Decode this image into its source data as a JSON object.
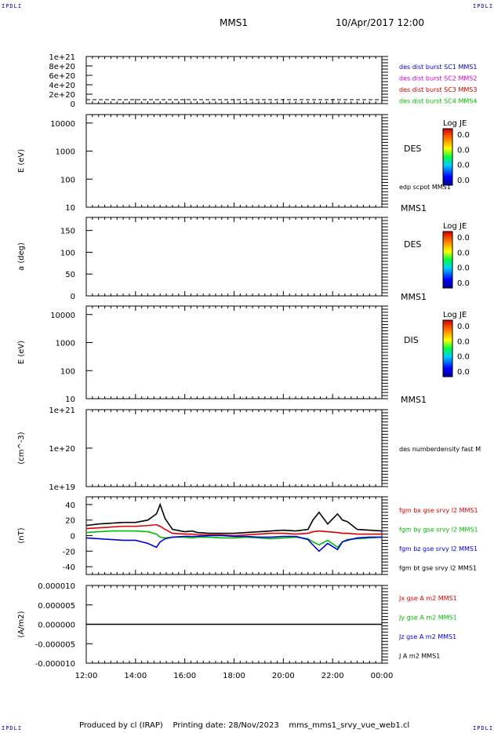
{
  "header": {
    "corner_label": "IPDLI",
    "spacecraft": "MMS1",
    "datetime": "10/Apr/2017 12:00"
  },
  "footer": {
    "producer": "Produced by cl (IRAP)",
    "printing_date": "Printing date: 28/Nov/2023",
    "filename": "mms_mms1_srvy_vue_web1.cl"
  },
  "chart_data": [
    {
      "type": "line",
      "panel": "distribution-burst",
      "yticks": [
        "1e+21",
        "8e+20",
        "6e+20",
        "4e+20",
        "2e+20",
        "0"
      ],
      "ylim": [
        0,
        1e+21
      ],
      "legend": [
        {
          "label": "des dist burst SC1 MMS1",
          "color": "#0000cc"
        },
        {
          "label": "des dist burst SC2 MMS2",
          "color": "#cc00cc"
        },
        {
          "label": "des dist burst SC3 MMS3",
          "color": "#cc0000"
        },
        {
          "label": "des dist burst SC4 MMS4",
          "color": "#00bb00"
        }
      ],
      "series": [
        {
          "values": [
            0,
            0,
            0,
            0,
            0,
            0,
            0,
            0,
            0,
            0,
            0,
            0,
            0
          ]
        }
      ]
    },
    {
      "type": "heatmap",
      "panel": "des-energy",
      "ylabel": "E (eV)",
      "yscale": "log",
      "ylim": [
        10,
        20000
      ],
      "yticks": [
        "10000",
        "1000",
        "100",
        "10"
      ],
      "label": "DES",
      "spacecraft_label": "MMS1",
      "extra_label": "edp scpot MMS1",
      "colorbar": {
        "title": "Log JE",
        "ticks": [
          "0.0",
          "0.0",
          "0.0",
          "0.0"
        ]
      }
    },
    {
      "type": "heatmap",
      "panel": "des-pitch",
      "ylabel": "a (deg)",
      "ylim": [
        0,
        180
      ],
      "yticks": [
        "150",
        "100",
        "50",
        "0"
      ],
      "label": "DES",
      "spacecraft_label": "MMS1",
      "colorbar": {
        "title": "Log JE",
        "ticks": [
          "0.0",
          "0.0",
          "0.0",
          "0.0"
        ]
      }
    },
    {
      "type": "heatmap",
      "panel": "dis-energy",
      "ylabel": "E (eV)",
      "yscale": "log",
      "ylim": [
        10,
        20000
      ],
      "yticks": [
        "10000",
        "1000",
        "100",
        "10"
      ],
      "label": "DIS",
      "spacecraft_label": "MMS1",
      "colorbar": {
        "title": "Log JE",
        "ticks": [
          "0.0",
          "0.0",
          "0.0",
          "0.0"
        ]
      }
    },
    {
      "type": "line",
      "panel": "density",
      "ylabel": "(cm^-3)",
      "yscale": "log",
      "ylim": [
        1e+19,
        1e+21
      ],
      "yticks": [
        "1e+21",
        "1e+20",
        "1e+19"
      ],
      "legend": [
        {
          "label": "des numberdensity fast M",
          "color": "#000000"
        }
      ]
    },
    {
      "type": "line",
      "panel": "magnetic-field",
      "ylabel": "(nT)",
      "ylim": [
        -50,
        50
      ],
      "yticks": [
        "40",
        "20",
        "0",
        "-20",
        "-40"
      ],
      "legend": [
        {
          "label": "fgm bx gse srvy l2 MMS1",
          "color": "#dd0000"
        },
        {
          "label": "fgm by gse srvy l2 MMS1",
          "color": "#00bb00"
        },
        {
          "label": "fgm bz gse srvy l2 MMS1",
          "color": "#0000dd"
        },
        {
          "label": "fgm bt gse srvy l2 MMS1",
          "color": "#000000"
        }
      ],
      "x_hours": [
        12.0,
        12.5,
        13.0,
        13.5,
        14.0,
        14.5,
        14.85,
        15.0,
        15.2,
        15.5,
        16.0,
        16.3,
        16.5,
        17.0,
        17.5,
        18.0,
        18.5,
        19.0,
        19.5,
        20.0,
        20.5,
        21.0,
        21.2,
        21.45,
        21.8,
        22.2,
        22.4,
        22.6,
        23.0,
        23.5,
        24.0
      ],
      "series": [
        {
          "name": "fgm bt gse srvy l2 MMS1",
          "values": [
            13,
            15,
            16,
            17,
            17,
            20,
            28,
            40,
            22,
            8,
            5,
            6,
            4,
            3,
            3,
            3,
            4,
            5,
            6,
            7,
            6,
            8,
            20,
            30,
            15,
            28,
            20,
            18,
            8,
            7,
            6
          ]
        },
        {
          "name": "fgm bx gse srvy l2 MMS1",
          "values": [
            9,
            10,
            11,
            12,
            12,
            13,
            14,
            12,
            8,
            3,
            2,
            2,
            1,
            1,
            1,
            0,
            1,
            2,
            3,
            3,
            2,
            3,
            5,
            6,
            5,
            4,
            3,
            3,
            2,
            2,
            2
          ]
        },
        {
          "name": "fgm by gse srvy l2 MMS1",
          "values": [
            4,
            5,
            6,
            6,
            6,
            5,
            2,
            -2,
            -3,
            -2,
            -2,
            -3,
            -2,
            -2,
            -3,
            -3,
            -2,
            -3,
            -4,
            -3,
            -2,
            -4,
            -8,
            -12,
            -6,
            -15,
            -8,
            -5,
            -4,
            -3,
            -2
          ]
        },
        {
          "name": "fgm bz gse srvy l2 MMS1",
          "values": [
            -3,
            -4,
            -5,
            -6,
            -6,
            -10,
            -15,
            -8,
            -4,
            -2,
            -1,
            -1,
            -1,
            0,
            0,
            -1,
            -1,
            -2,
            -2,
            -1,
            -1,
            -5,
            -12,
            -20,
            -10,
            -18,
            -8,
            -6,
            -3,
            -2,
            -2
          ]
        }
      ]
    },
    {
      "type": "line",
      "panel": "current-density",
      "ylabel": "(A/m2)",
      "ylim": [
        -1e-05,
        1e-05
      ],
      "yticks": [
        "0.000010",
        "0.000005",
        "0.000000",
        "-0.000005",
        "-0.000010"
      ],
      "legend": [
        {
          "label": "Jx gse A m2 MMS1",
          "color": "#dd0000"
        },
        {
          "label": "Jy gse A m2 MMS1",
          "color": "#00bb00"
        },
        {
          "label": "Jz gse A m2 MMS1",
          "color": "#0000dd"
        },
        {
          "label": "J A m2 MMS1",
          "color": "#000000"
        }
      ],
      "series": [
        {
          "values": [
            0,
            0,
            0,
            0,
            0,
            0,
            0,
            0,
            0,
            0,
            0,
            0,
            0
          ]
        }
      ]
    }
  ],
  "x_axis": {
    "ticks": [
      "12:00",
      "14:00",
      "16:00",
      "18:00",
      "20:00",
      "22:00",
      "00:00"
    ]
  }
}
